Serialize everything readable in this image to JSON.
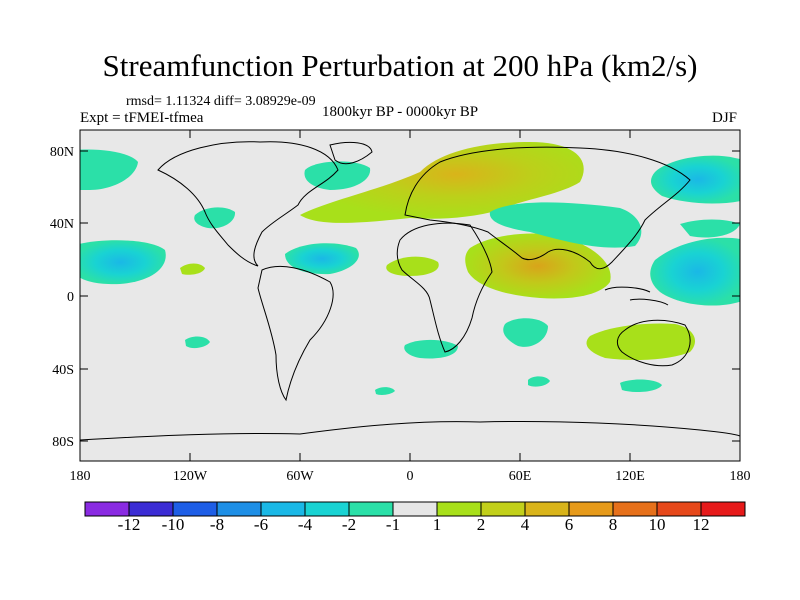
{
  "title": "Streamfunction Perturbation at 200 hPa (km2/s)",
  "stats": "rmsd= 1.11324 diff= 3.08929e-09",
  "experiment": "Expt = tFMEI-tfmea",
  "period": "1800kyr BP - 0000kyr BP",
  "season": "DJF",
  "map": {
    "lat_ticks": [
      "80N",
      "40N",
      "0",
      "40S",
      "80S"
    ],
    "lon_ticks": [
      "180",
      "120W",
      "60W",
      "0",
      "60E",
      "120E",
      "180"
    ]
  },
  "colorbar": {
    "colors": [
      "#8a2be2",
      "#3b2cd4",
      "#1e5ee6",
      "#1e8fe6",
      "#1ab8e6",
      "#19d3d3",
      "#2be0a8",
      "#e6e6e6",
      "#a8e01a",
      "#c2d01a",
      "#d9b41a",
      "#e69a1a",
      "#e6701a",
      "#e6481a",
      "#e61a1a"
    ],
    "labels": [
      "-12",
      "-10",
      "-8",
      "-6",
      "-4",
      "-2",
      "-1",
      "1",
      "2",
      "4",
      "6",
      "8",
      "10",
      "12"
    ]
  }
}
